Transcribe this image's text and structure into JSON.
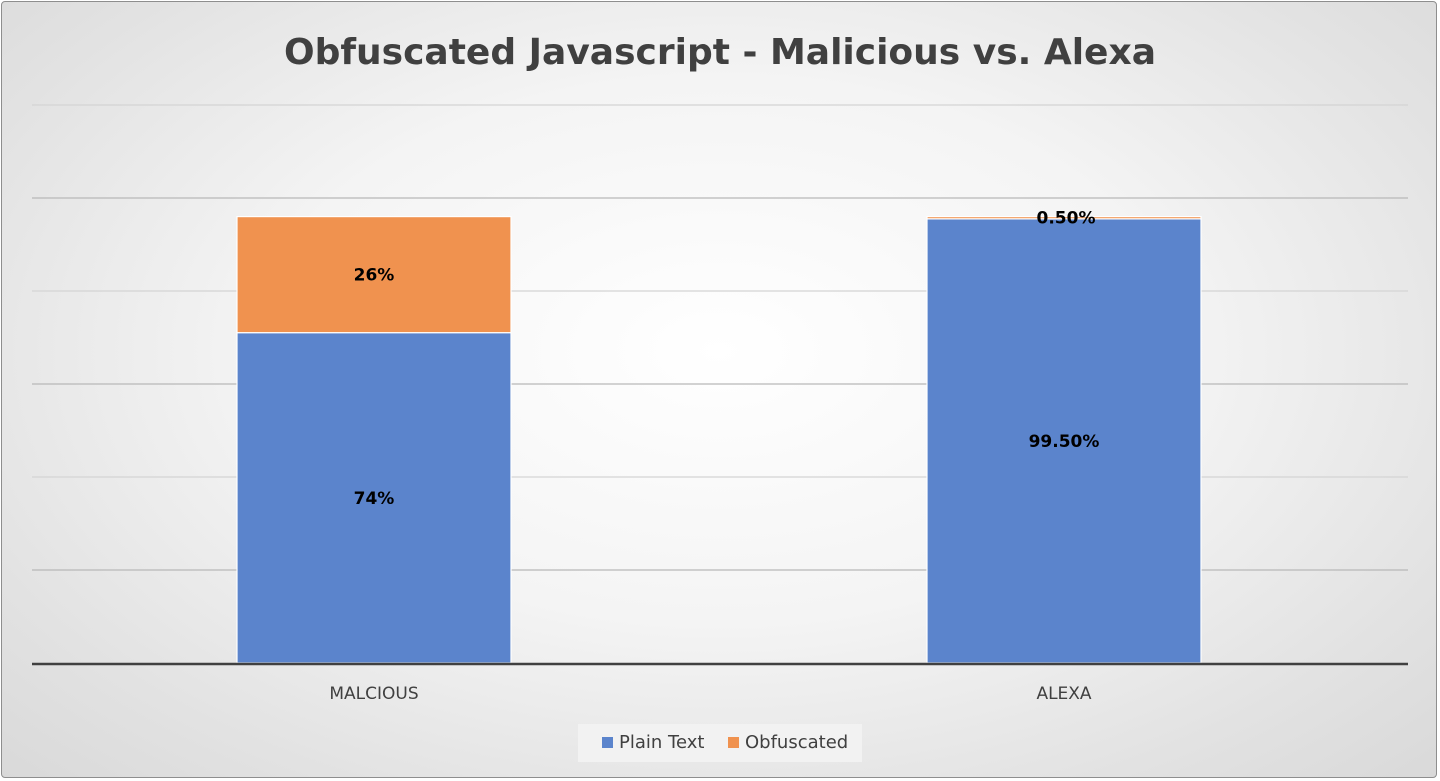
{
  "chart_data": {
    "type": "bar",
    "stacked": true,
    "title": "Obfuscated Javascript - Malicious vs. Alexa",
    "categories": [
      "MALCIOUS",
      "ALEXA"
    ],
    "series": [
      {
        "name": "Plain Text",
        "values": [
          74,
          99.5
        ],
        "labels": [
          "74%",
          "99.50%"
        ],
        "color": "#5b84cc"
      },
      {
        "name": "Obfuscated",
        "values": [
          26,
          0.5
        ],
        "labels": [
          "26%",
          "0.50%"
        ],
        "color": "#f0924f"
      }
    ],
    "ylim": [
      0,
      125
    ],
    "grid": true,
    "legend": "bottom"
  }
}
